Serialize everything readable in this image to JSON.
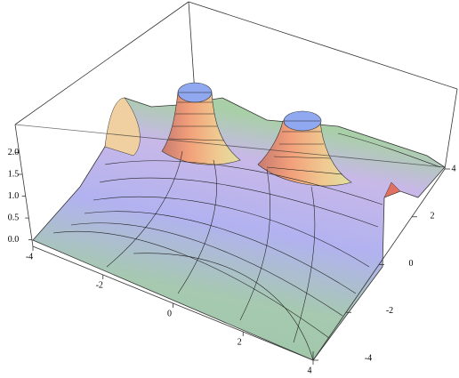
{
  "chart_data": {
    "type": "surface",
    "xlim": [
      -4,
      4
    ],
    "xticks": [
      -4,
      -2,
      0,
      2,
      4
    ],
    "ylim": [
      -4,
      4
    ],
    "yticks": [
      -4,
      -2,
      0,
      2,
      4
    ],
    "zlim": [
      -0.15,
      2.6
    ],
    "zticks": [
      {
        "value": 0,
        "label": "0.0"
      },
      0.5,
      {
        "value": 1,
        "label": "1.0"
      },
      1.5,
      {
        "value": 2,
        "label": "2.0"
      }
    ]
  }
}
